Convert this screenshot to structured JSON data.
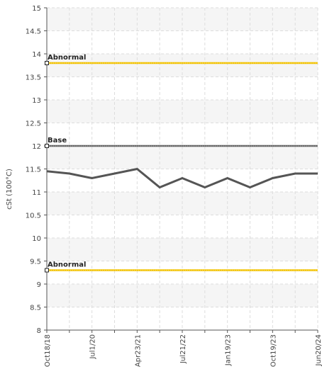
{
  "chart_data": {
    "type": "line",
    "title": "",
    "xlabel": "",
    "ylabel": "cSt (100°C)",
    "ylim": [
      8,
      15
    ],
    "y_ticks": [
      "8",
      "8.5",
      "9",
      "9.5",
      "10",
      "10.5",
      "11",
      "11.5",
      "12",
      "12.5",
      "13",
      "13.5",
      "14",
      "14.5",
      "15"
    ],
    "x_ticks": [
      "Oct18/18",
      "Jul1/20",
      "Apr23/21",
      "Jul21/22",
      "Jan19/23",
      "Oct19/23",
      "Jun20/24"
    ],
    "grid": true,
    "series": [
      {
        "color": "#555555",
        "points": [
          {
            "x": 0.0,
            "y": 11.45
          },
          {
            "x": 0.5,
            "y": 11.4
          },
          {
            "x": 1.0,
            "y": 11.3
          },
          {
            "x": 1.5,
            "y": 11.4
          },
          {
            "x": 2.0,
            "y": 11.5
          },
          {
            "x": 2.5,
            "y": 11.1
          },
          {
            "x": 3.0,
            "y": 11.3
          },
          {
            "x": 3.5,
            "y": 11.1
          },
          {
            "x": 4.0,
            "y": 11.3
          },
          {
            "x": 4.5,
            "y": 11.1
          },
          {
            "x": 5.0,
            "y": 11.3
          },
          {
            "x": 5.5,
            "y": 11.4
          },
          {
            "x": 6.0,
            "y": 11.4
          }
        ]
      }
    ],
    "reference_lines": [
      {
        "label": "Abnormal",
        "value": 13.8,
        "color": "#f2c200"
      },
      {
        "label": "Base",
        "value": 12.0,
        "color": "#666666"
      },
      {
        "label": "Abnormal",
        "value": 9.3,
        "color": "#f2c200"
      }
    ]
  }
}
